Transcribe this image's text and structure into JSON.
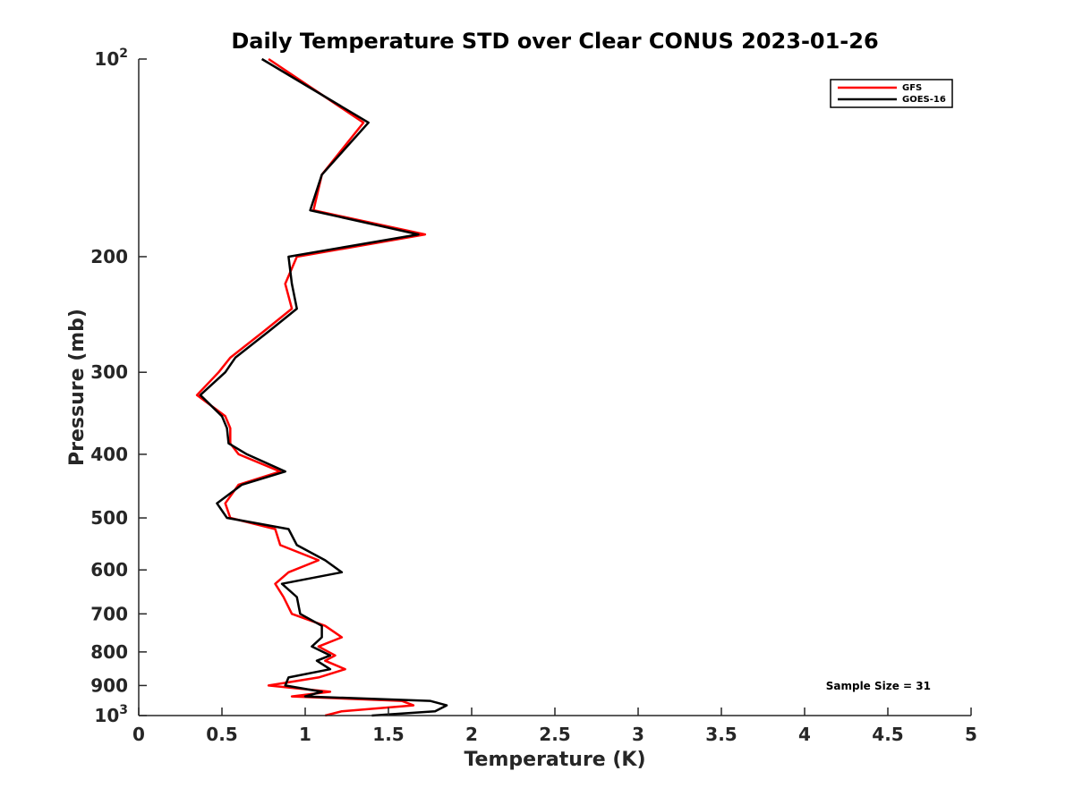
{
  "chart_data": {
    "type": "line",
    "title": "Daily Temperature STD over Clear CONUS 2023-01-26",
    "xlabel": "Temperature (K)",
    "ylabel": "Pressure (mb)",
    "xlim": [
      0,
      5
    ],
    "ylim": [
      100,
      1000
    ],
    "yscale": "log",
    "y_reversed": true,
    "grid": false,
    "legend_position": "top-right",
    "x_ticks": [
      "0",
      "0.5",
      "1",
      "1.5",
      "2",
      "2.5",
      "3",
      "3.5",
      "4",
      "4.5",
      "5"
    ],
    "y_ticks": [
      {
        "value": 100,
        "base": "10",
        "exp": "2"
      },
      {
        "value": 200,
        "label": "200"
      },
      {
        "value": 300,
        "label": "300"
      },
      {
        "value": 400,
        "label": "400"
      },
      {
        "value": 500,
        "label": "500"
      },
      {
        "value": 600,
        "label": "600"
      },
      {
        "value": 700,
        "label": "700"
      },
      {
        "value": 800,
        "label": "800"
      },
      {
        "value": 900,
        "label": "900"
      },
      {
        "value": 1000,
        "base": "10",
        "exp": "3"
      }
    ],
    "annotation": "Sample Size = 31",
    "series": [
      {
        "name": "GFS",
        "color": "#ff0000",
        "points": [
          [
            0.78,
            100
          ],
          [
            1.35,
            125
          ],
          [
            1.1,
            150
          ],
          [
            1.05,
            170
          ],
          [
            1.72,
            185
          ],
          [
            0.95,
            200
          ],
          [
            0.88,
            220
          ],
          [
            0.92,
            240
          ],
          [
            0.75,
            260
          ],
          [
            0.55,
            285
          ],
          [
            0.48,
            300
          ],
          [
            0.35,
            325
          ],
          [
            0.52,
            350
          ],
          [
            0.55,
            365
          ],
          [
            0.55,
            385
          ],
          [
            0.6,
            400
          ],
          [
            0.85,
            425
          ],
          [
            0.6,
            445
          ],
          [
            0.52,
            475
          ],
          [
            0.55,
            500
          ],
          [
            0.82,
            520
          ],
          [
            0.85,
            550
          ],
          [
            1.08,
            580
          ],
          [
            0.9,
            605
          ],
          [
            0.82,
            630
          ],
          [
            0.87,
            660
          ],
          [
            0.92,
            700
          ],
          [
            1.12,
            730
          ],
          [
            1.22,
            760
          ],
          [
            1.08,
            785
          ],
          [
            1.18,
            810
          ],
          [
            1.12,
            825
          ],
          [
            1.24,
            850
          ],
          [
            1.08,
            875
          ],
          [
            0.78,
            900
          ],
          [
            1.15,
            920
          ],
          [
            0.92,
            935
          ],
          [
            1.58,
            950
          ],
          [
            1.65,
            965
          ],
          [
            1.22,
            985
          ],
          [
            1.12,
            1000
          ]
        ]
      },
      {
        "name": "GOES-16",
        "color": "#000000",
        "points": [
          [
            0.74,
            100
          ],
          [
            1.38,
            125
          ],
          [
            1.1,
            150
          ],
          [
            1.03,
            170
          ],
          [
            1.68,
            185
          ],
          [
            0.9,
            200
          ],
          [
            0.92,
            220
          ],
          [
            0.95,
            240
          ],
          [
            0.78,
            260
          ],
          [
            0.58,
            285
          ],
          [
            0.52,
            300
          ],
          [
            0.37,
            325
          ],
          [
            0.5,
            350
          ],
          [
            0.53,
            365
          ],
          [
            0.54,
            385
          ],
          [
            0.65,
            400
          ],
          [
            0.88,
            425
          ],
          [
            0.62,
            445
          ],
          [
            0.47,
            475
          ],
          [
            0.53,
            500
          ],
          [
            0.9,
            520
          ],
          [
            0.95,
            550
          ],
          [
            1.12,
            580
          ],
          [
            1.22,
            605
          ],
          [
            0.86,
            630
          ],
          [
            0.95,
            660
          ],
          [
            0.97,
            700
          ],
          [
            1.1,
            730
          ],
          [
            1.1,
            760
          ],
          [
            1.04,
            785
          ],
          [
            1.15,
            810
          ],
          [
            1.07,
            825
          ],
          [
            1.15,
            850
          ],
          [
            0.9,
            875
          ],
          [
            0.88,
            900
          ],
          [
            1.1,
            920
          ],
          [
            1.0,
            935
          ],
          [
            1.75,
            950
          ],
          [
            1.85,
            965
          ],
          [
            1.78,
            985
          ],
          [
            1.4,
            1000
          ]
        ]
      }
    ]
  }
}
